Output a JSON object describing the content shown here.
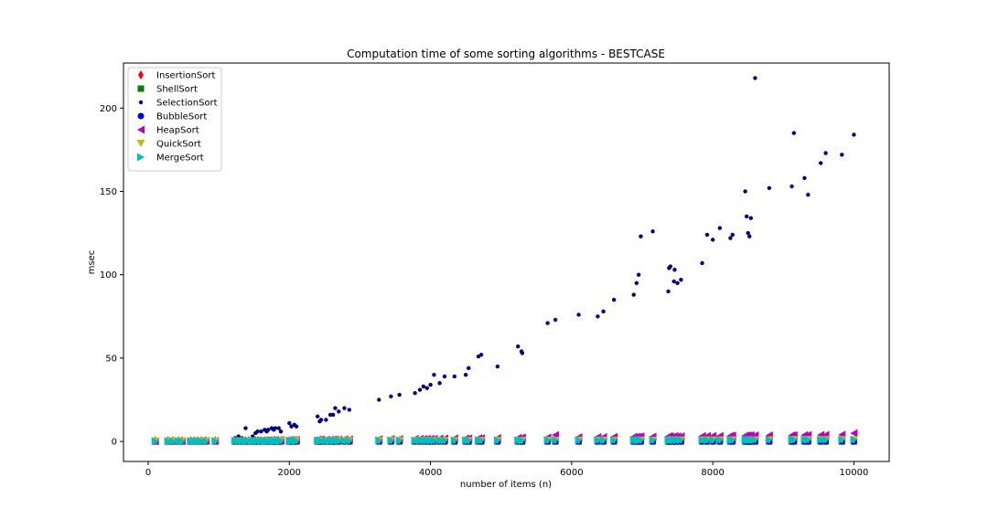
{
  "chart_data": {
    "type": "scatter",
    "title": "Computation time of some sorting algorithms - BESTCASE",
    "xlabel": "number of items (n)",
    "ylabel": "msec",
    "xlim": [
      -350,
      10500
    ],
    "ylim": [
      -12,
      227
    ],
    "x_ticks": [
      0,
      2000,
      4000,
      6000,
      8000,
      10000
    ],
    "y_ticks": [
      0,
      50,
      100,
      150,
      200
    ],
    "grid": false,
    "legend_position": "top-left",
    "x_positions": [
      100,
      280,
      350,
      430,
      480,
      600,
      650,
      700,
      750,
      820,
      950,
      1230,
      1280,
      1330,
      1380,
      1420,
      1480,
      1520,
      1550,
      1600,
      1650,
      1680,
      1700,
      1750,
      1780,
      1800,
      1850,
      1880,
      2000,
      2030,
      2070,
      2100,
      2400,
      2430,
      2450,
      2520,
      2580,
      2620,
      2650,
      2700,
      2780,
      2850,
      3270,
      3440,
      3560,
      3780,
      3850,
      3900,
      3950,
      4000,
      4050,
      4130,
      4200,
      4340,
      4500,
      4540,
      4680,
      4720,
      4950,
      5240,
      5290,
      5300,
      5660,
      5770,
      6100,
      6370,
      6450,
      6600,
      6880,
      6920,
      6950,
      6980,
      7150,
      7370,
      7380,
      7400,
      7450,
      7460,
      7500,
      7550,
      7850,
      7920,
      8000,
      8100,
      8250,
      8280,
      8460,
      8480,
      8500,
      8520,
      8540,
      8600,
      8800,
      9120,
      9150,
      9300,
      9350,
      9530,
      9600,
      9830,
      10000
    ],
    "series": [
      {
        "name": "InsertionSort",
        "color": "#ff0000",
        "marker": "thin-diamond",
        "values": [
          0.5,
          0.5,
          0.5,
          0.5,
          0.5,
          0.5,
          0.5,
          0.5,
          0.5,
          0.5,
          0.5,
          0.5,
          0.5,
          0.5,
          0.5,
          0.5,
          0.5,
          0.5,
          0.5,
          0.5,
          0.5,
          0.5,
          0.5,
          0.5,
          0.5,
          0.5,
          0.5,
          0.5,
          0.5,
          0.5,
          0.5,
          0.5,
          0.5,
          0.5,
          0.5,
          0.5,
          0.5,
          0.5,
          0.5,
          0.5,
          0.5,
          0.5,
          0.5,
          0.5,
          0.5,
          0.5,
          0.5,
          0.5,
          0.5,
          0.5,
          0.5,
          0.5,
          0.5,
          0.5,
          0.5,
          0.5,
          0.5,
          0.5,
          0.5,
          0.5,
          0.5,
          0.5,
          0.5,
          0.5,
          0.5,
          0.5,
          0.5,
          0.5,
          0.5,
          0.5,
          0.5,
          0.5,
          0.5,
          0.5,
          0.5,
          0.5,
          0.5,
          0.5,
          0.5,
          0.5,
          0.5,
          0.5,
          0.5,
          0.5,
          0.5,
          0.5,
          0.5,
          0.5,
          0.5,
          0.5,
          0.5,
          0.5,
          0.5,
          0.5,
          0.5,
          0.5,
          0.5,
          0.5,
          0.5,
          0.5,
          0.5
        ]
      },
      {
        "name": "ShellSort",
        "color": "#007f00",
        "marker": "square",
        "values": [
          0,
          0,
          0,
          0,
          0,
          0,
          0,
          0,
          0,
          0,
          0,
          0,
          0,
          0,
          0,
          0,
          0,
          0,
          0,
          0,
          0,
          0,
          0,
          0,
          0,
          0,
          0,
          0,
          0,
          0,
          0,
          0,
          0,
          0,
          0,
          0,
          0,
          0,
          0,
          0,
          0,
          0,
          0,
          0,
          0,
          0,
          0,
          0,
          0,
          0,
          0,
          0,
          0,
          0,
          0,
          0,
          0,
          0,
          0,
          0,
          0,
          0,
          0,
          0,
          0,
          0,
          0,
          0,
          0,
          0,
          0,
          0,
          0,
          0,
          0,
          0,
          0,
          0,
          0,
          0,
          0,
          0,
          0,
          0,
          0,
          0,
          0,
          0,
          0,
          0,
          0,
          0,
          0,
          0,
          0,
          0,
          0,
          0,
          0,
          0,
          0
        ]
      },
      {
        "name": "SelectionSort",
        "color": "#00008b",
        "marker": "small-dot",
        "values": [
          0.5,
          0.5,
          0.5,
          0.5,
          0.5,
          0.5,
          0.5,
          0.5,
          0.5,
          0.5,
          0.5,
          2,
          3,
          2,
          8,
          1,
          3,
          5,
          6,
          6,
          7,
          6,
          7,
          8,
          7,
          8,
          8,
          6,
          11,
          9,
          10,
          9,
          15,
          12,
          13,
          13,
          16,
          16,
          20,
          18,
          20,
          19,
          25,
          27,
          28,
          29,
          31,
          33,
          32,
          34,
          40,
          35,
          39,
          39,
          40,
          44,
          51,
          52,
          45,
          57,
          54,
          53,
          71,
          73,
          76,
          75,
          78,
          85,
          88,
          95,
          100,
          123,
          126,
          90,
          104,
          105,
          96,
          103,
          95,
          97,
          107,
          124,
          121,
          128,
          122,
          124,
          150,
          135,
          125,
          123,
          134,
          218,
          152,
          153,
          185,
          158,
          148,
          167,
          173,
          172,
          184
        ]
      },
      {
        "name": "BubbleSort",
        "color": "#0000ff",
        "marker": "circle",
        "values": [
          0,
          0,
          0,
          0,
          0,
          0,
          0,
          0,
          0,
          0,
          0,
          0,
          0,
          0,
          0,
          0,
          0,
          0,
          0,
          0,
          0,
          0,
          0,
          0,
          0,
          0,
          0,
          0,
          0,
          0,
          0,
          0,
          0,
          0,
          0,
          0,
          0,
          0,
          0,
          0,
          0,
          0,
          0,
          0,
          0,
          0,
          0,
          0,
          0,
          0,
          0,
          0,
          0,
          0,
          0,
          0,
          0,
          0,
          0,
          0,
          0,
          0,
          0,
          0,
          0,
          0,
          0,
          0,
          0,
          0,
          0,
          0,
          0,
          0,
          0,
          0,
          0,
          0,
          0,
          0,
          0,
          0,
          0,
          0,
          0,
          0,
          0,
          0,
          0,
          0,
          0,
          0,
          0,
          0,
          0,
          0,
          0,
          0,
          0,
          0,
          0
        ]
      },
      {
        "name": "HeapSort",
        "color": "#bf00bf",
        "marker": "triangle-left",
        "values": [
          0.1,
          0.1,
          0.2,
          0.2,
          0.2,
          0.3,
          0.3,
          0.3,
          0.3,
          0.4,
          0.4,
          0.5,
          0.5,
          0.5,
          0.6,
          0.6,
          0.6,
          0.6,
          0.7,
          0.7,
          0.7,
          0.7,
          0.7,
          0.8,
          0.8,
          0.8,
          0.8,
          0.8,
          0.9,
          0.9,
          0.9,
          0.9,
          1.0,
          1.0,
          1.0,
          1.0,
          1.1,
          1.1,
          1.1,
          1.1,
          1.2,
          1.2,
          1.3,
          1.4,
          1.4,
          1.5,
          1.5,
          1.5,
          1.6,
          1.6,
          1.6,
          1.7,
          1.7,
          1.8,
          1.8,
          1.8,
          1.9,
          1.9,
          2.0,
          2.1,
          2.2,
          2.2,
          2.3,
          3.8,
          2.5,
          2.6,
          2.6,
          2.7,
          2.8,
          2.8,
          2.8,
          3.0,
          2.9,
          3.0,
          3.0,
          3.0,
          3.1,
          3.1,
          3.1,
          3.1,
          3.2,
          3.3,
          3.3,
          3.3,
          3.4,
          3.4,
          3.5,
          3.5,
          3.5,
          3.5,
          3.6,
          3.6,
          3.6,
          3.7,
          3.7,
          3.8,
          3.8,
          3.9,
          3.9,
          4.0,
          4.9
        ]
      },
      {
        "name": "QuickSort",
        "color": "#bfbf00",
        "marker": "triangle-down",
        "values": [
          0.2,
          0.2,
          0.2,
          0.2,
          0.2,
          0.2,
          0.2,
          0.2,
          0.2,
          0.2,
          0.2,
          0.3,
          0.3,
          0.3,
          0.3,
          0.3,
          0.3,
          0.3,
          0.3,
          0.3,
          0.3,
          0.3,
          0.3,
          0.4,
          0.4,
          0.4,
          0.4,
          0.4,
          0.4,
          0.4,
          0.4,
          0.4,
          0.4,
          0.4,
          0.4,
          0.4,
          0.4,
          0.4,
          0.4,
          0.4,
          0.4,
          0.5,
          0.5,
          0.5,
          0.5,
          0.5,
          0.5,
          0.5,
          0.5,
          0.5,
          0.5,
          0.5,
          0.5,
          0.5,
          0.5,
          0.5,
          0.6,
          0.6,
          0.6,
          0.6,
          0.6,
          0.6,
          0.6,
          0.6,
          0.7,
          0.7,
          0.7,
          0.7,
          0.7,
          0.7,
          0.7,
          0.7,
          0.7,
          0.8,
          0.8,
          0.8,
          0.8,
          0.8,
          0.8,
          0.8,
          0.8,
          0.8,
          0.8,
          0.8,
          0.9,
          0.9,
          0.9,
          0.9,
          0.9,
          0.9,
          0.9,
          0.9,
          0.9,
          1.0,
          1.0,
          1.0,
          1.0,
          1.0,
          1.0,
          1.0,
          1.0
        ]
      },
      {
        "name": "MergeSort",
        "color": "#00bfbf",
        "marker": "triangle-right",
        "values": [
          0.1,
          0.1,
          0.1,
          0.1,
          0.1,
          0.1,
          0.2,
          0.2,
          0.2,
          0.2,
          0.2,
          0.3,
          0.3,
          0.3,
          0.3,
          0.3,
          0.3,
          0.3,
          0.3,
          0.3,
          0.3,
          0.4,
          0.4,
          0.4,
          0.4,
          0.4,
          0.4,
          0.4,
          0.4,
          0.4,
          0.4,
          0.4,
          0.5,
          0.5,
          0.5,
          0.5,
          0.5,
          0.5,
          0.5,
          0.5,
          0.5,
          0.5,
          0.6,
          0.6,
          0.6,
          0.6,
          0.6,
          0.6,
          0.6,
          0.6,
          0.6,
          0.6,
          0.6,
          0.7,
          0.7,
          0.7,
          0.7,
          0.7,
          0.7,
          0.7,
          0.7,
          0.7,
          0.8,
          0.8,
          0.8,
          0.8,
          0.8,
          0.8,
          0.8,
          0.8,
          0.8,
          0.8,
          0.8,
          0.9,
          0.9,
          0.9,
          0.9,
          0.9,
          0.9,
          0.9,
          0.9,
          0.9,
          0.9,
          0.9,
          0.9,
          0.9,
          1.0,
          1.0,
          1.0,
          1.0,
          1.0,
          1.0,
          1.0,
          1.0,
          1.0,
          1.0,
          1.0,
          1.0,
          1.0,
          1.0,
          1.1
        ]
      }
    ]
  }
}
